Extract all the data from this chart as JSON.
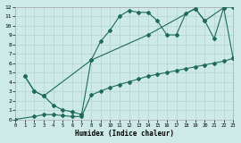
{
  "xlabel": "Humidex (Indice chaleur)",
  "bg_color": "#ceeae7",
  "grid_color": "#b8d8d5",
  "line_color": "#1e6b5a",
  "xlim": [
    0,
    23
  ],
  "ylim": [
    0,
    12
  ],
  "xticks": [
    0,
    1,
    2,
    3,
    4,
    5,
    6,
    7,
    8,
    9,
    10,
    11,
    12,
    13,
    14,
    15,
    16,
    17,
    18,
    19,
    20,
    21,
    22,
    23
  ],
  "yticks": [
    0,
    1,
    2,
    3,
    4,
    5,
    6,
    7,
    8,
    9,
    10,
    11,
    12
  ],
  "line1_x": [
    1,
    2,
    3,
    4,
    5,
    6,
    7,
    8,
    9,
    10,
    11,
    12,
    13,
    14,
    15,
    16,
    17,
    18,
    19,
    20,
    21,
    22,
    23
  ],
  "line1_y": [
    4.6,
    3.0,
    2.5,
    1.5,
    1.0,
    0.8,
    0.5,
    6.3,
    8.3,
    9.5,
    11.0,
    11.6,
    11.4,
    11.4,
    10.5,
    9.0,
    9.0,
    11.3,
    11.8,
    10.5,
    8.6,
    11.9,
    12.0
  ],
  "line2_x": [
    1,
    2,
    3,
    8,
    14,
    19,
    20,
    22,
    23
  ],
  "line2_y": [
    4.6,
    3.0,
    2.5,
    6.3,
    9.0,
    11.8,
    10.5,
    11.9,
    6.5
  ],
  "line3_x": [
    0,
    2,
    3,
    4,
    5,
    6,
    7,
    8,
    9,
    10,
    11,
    12,
    13,
    14,
    15,
    16,
    17,
    18,
    19,
    20,
    21,
    22,
    23
  ],
  "line3_y": [
    0.0,
    0.3,
    0.5,
    0.5,
    0.4,
    0.3,
    0.3,
    2.6,
    3.0,
    3.4,
    3.7,
    4.0,
    4.3,
    4.6,
    4.8,
    5.0,
    5.2,
    5.4,
    5.6,
    5.8,
    6.0,
    6.2,
    6.5
  ]
}
